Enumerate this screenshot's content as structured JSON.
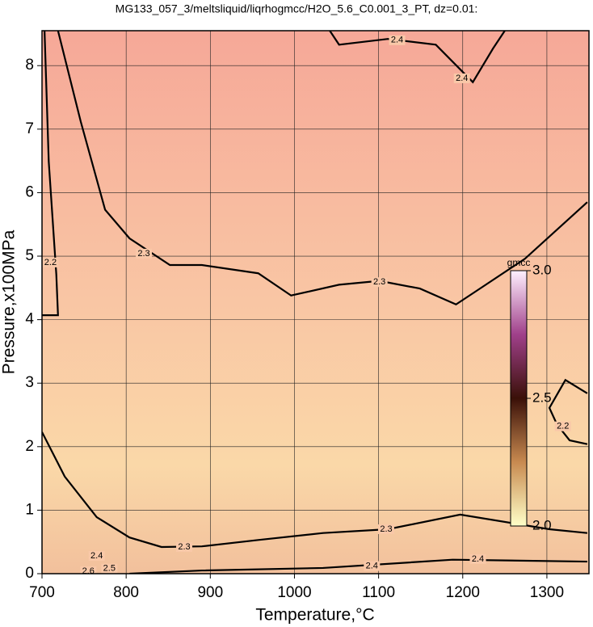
{
  "chart_data": {
    "type": "contour",
    "title": "MG133_057_3/meltsliquid/liqrhogmcc/H2O_5.6_C0.001_3_PT, dz=0.01:",
    "x_label": "Temperature,°C",
    "y_label": "Pressure,x100MPa",
    "xlim": [
      700,
      1350
    ],
    "ylim": [
      0,
      8.55
    ],
    "xticks": [
      700,
      800,
      900,
      1000,
      1100,
      1200,
      1300
    ],
    "yticks": [
      0,
      1,
      2,
      3,
      4,
      5,
      6,
      7,
      8
    ],
    "grid": true,
    "line_color": "#000000",
    "contours": [
      {
        "x": [
          719,
          746,
          775,
          804,
          852,
          890,
          957,
          996,
          1053,
          1101,
          1149,
          1192,
          1216,
          1274,
          1348
        ],
        "y": [
          8.55,
          7.12,
          5.73,
          5.28,
          4.86,
          4.86,
          4.73,
          4.38,
          4.55,
          4.61,
          4.49,
          4.24,
          4.45,
          4.96,
          5.85
        ]
      },
      {
        "x": [
          700,
          727,
          765,
          804,
          842,
          890,
          957,
          1034,
          1111,
          1197,
          1303,
          1348
        ],
        "y": [
          2.23,
          1.53,
          0.89,
          0.57,
          0.42,
          0.43,
          0.53,
          0.64,
          0.7,
          0.93,
          0.7,
          0.64
        ]
      },
      {
        "x": [
          1042,
          1053,
          1111,
          1168,
          1212,
          1236,
          1250
        ],
        "y": [
          8.55,
          8.33,
          8.42,
          8.33,
          7.74,
          8.27,
          8.55
        ]
      },
      {
        "x": [
          804,
          890,
          1034,
          1188,
          1348
        ],
        "y": [
          0,
          0.05,
          0.09,
          0.22,
          0.19
        ]
      },
      {
        "x": [
          1348,
          1322,
          1303,
          1312,
          1327,
          1348
        ],
        "y": [
          2.84,
          3.05,
          2.61,
          2.35,
          2.1,
          2.04
        ]
      },
      {
        "x": [
          700,
          719,
          717,
          708,
          703
        ],
        "y": [
          4.07,
          4.07,
          4.71,
          6.49,
          8.55
        ]
      }
    ],
    "contour_labels": [
      {
        "level": 2.3,
        "x": 821,
        "y": 5.04
      },
      {
        "level": 2.3,
        "x": 1101,
        "y": 4.59
      },
      {
        "level": 2.3,
        "x": 869,
        "y": 0.42
      },
      {
        "level": 2.3,
        "x": 1109,
        "y": 0.7
      },
      {
        "level": 2.4,
        "x": 1122,
        "y": 8.4
      },
      {
        "level": 2.4,
        "x": 1199,
        "y": 7.8
      },
      {
        "level": 2.4,
        "x": 765,
        "y": 0.28
      },
      {
        "level": 2.4,
        "x": 1092,
        "y": 0.12
      },
      {
        "level": 2.4,
        "x": 1218,
        "y": 0.23
      },
      {
        "level": 2.2,
        "x": 710,
        "y": 4.9
      },
      {
        "level": 2.2,
        "x": 1319,
        "y": 2.32
      },
      {
        "level": 2.5,
        "x": 780,
        "y": 0.08
      },
      {
        "level": 2.6,
        "x": 755,
        "y": 0.04
      }
    ],
    "colorbar": {
      "label": "gmcc",
      "lim": [
        2.0,
        3.0
      ],
      "ticks": [
        {
          "value": 2.0,
          "label": "2.0"
        },
        {
          "value": 2.5,
          "label": "2.5"
        },
        {
          "value": 3.0,
          "label": "3.0"
        }
      ],
      "colors": [
        "#ffffc8",
        "#c88a50",
        "#3a1008",
        "#a0408a",
        "#fff0ff"
      ]
    }
  }
}
